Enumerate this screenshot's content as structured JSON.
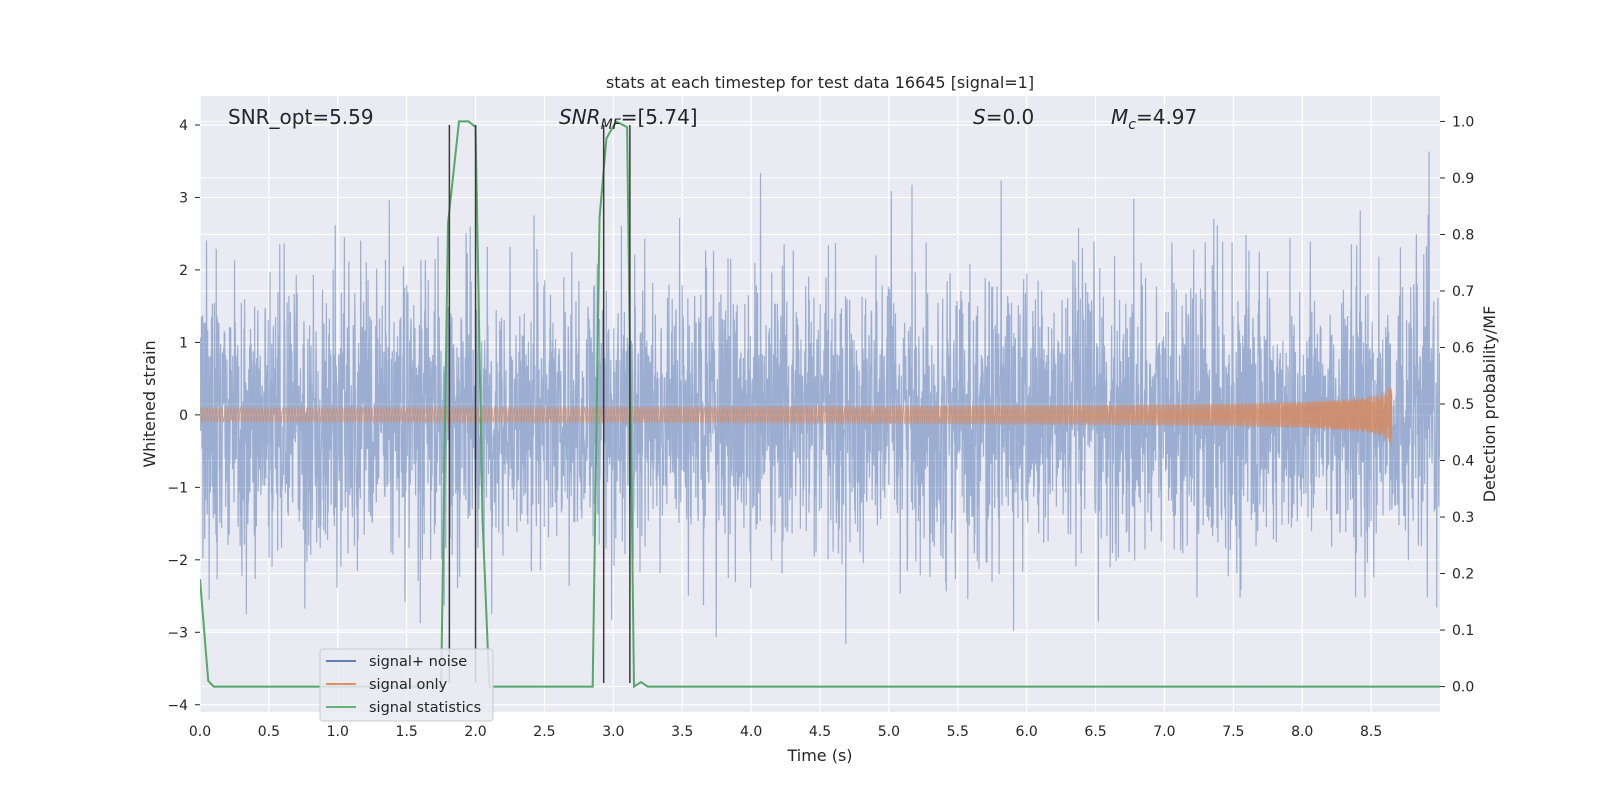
{
  "chart_data": {
    "type": "line",
    "title": "stats at each timestep for test data 16645 [signal=1]",
    "xlabel": "Time (s)",
    "ylabel": "Whitened strain",
    "y2label": "Detection probability/MF",
    "xlim": [
      0.0,
      9.0
    ],
    "ylim": [
      -4.1,
      4.4
    ],
    "y2lim": [
      -0.045,
      1.045
    ],
    "xticks": [
      "0.0",
      "0.5",
      "1.0",
      "1.5",
      "2.0",
      "2.5",
      "3.0",
      "3.5",
      "4.0",
      "4.5",
      "5.0",
      "5.5",
      "6.0",
      "6.5",
      "7.0",
      "7.5",
      "8.0",
      "8.5"
    ],
    "yticks": [
      "4",
      "3",
      "2",
      "1",
      "0",
      "−1",
      "−2",
      "−3",
      "−4"
    ],
    "y2ticks": [
      "1.0",
      "0.9",
      "0.8",
      "0.7",
      "0.6",
      "0.5",
      "0.4",
      "0.3",
      "0.2",
      "0.1",
      "0.0"
    ],
    "grid": true,
    "legend_position": "lower-left",
    "annotations": {
      "snr_opt": "SNR_opt=5.59",
      "snr_mf_base": "SNR",
      "snr_mf_sub": "MF",
      "snr_mf_value": "=[5.74]",
      "s_symbol": "S",
      "s_value": "=0.0",
      "mc_base": "M",
      "mc_sub": "c",
      "mc_value": "=4.97"
    },
    "series": [
      {
        "name": "signal+ noise",
        "color": "#4c72b0",
        "axis": "left",
        "description": "whitened noisy strain, Gaussian-like noise roughly within ±2.5 with peaks to ±4",
        "x_range": [
          0.0,
          9.0
        ],
        "approx_std": 0.95
      },
      {
        "name": "signal only",
        "color": "#dd8452",
        "axis": "left",
        "description": "chirp signal with amplitude growing from ~0.01 to ~0.45, ending near t=8.65",
        "x_range": [
          0.0,
          8.65
        ],
        "peak_amplitude": 0.45,
        "end_time": 8.65
      },
      {
        "name": "signal statistics",
        "color": "#55a868",
        "axis": "right",
        "x": [
          0.0,
          0.06,
          0.1,
          0.14,
          1.7,
          1.75,
          1.8,
          1.88,
          1.95,
          2.0,
          2.05,
          2.1,
          2.15,
          2.2,
          2.85,
          2.9,
          2.95,
          3.02,
          3.1,
          3.15,
          3.2,
          3.25,
          3.3,
          9.0
        ],
        "y": [
          0.19,
          0.01,
          0.0,
          0.0,
          0.0,
          0.0,
          0.82,
          1.0,
          1.0,
          0.99,
          0.3,
          0.0,
          0.0,
          0.0,
          0.0,
          0.83,
          0.97,
          1.0,
          0.99,
          0.0,
          0.008,
          0.0,
          0.0,
          0.0
        ]
      }
    ],
    "vertical_markers": {
      "color": "#3a3a3a",
      "x": [
        1.81,
        2.0,
        2.93,
        3.12
      ],
      "y_top": 4.0,
      "y_bottom": -3.7
    }
  }
}
